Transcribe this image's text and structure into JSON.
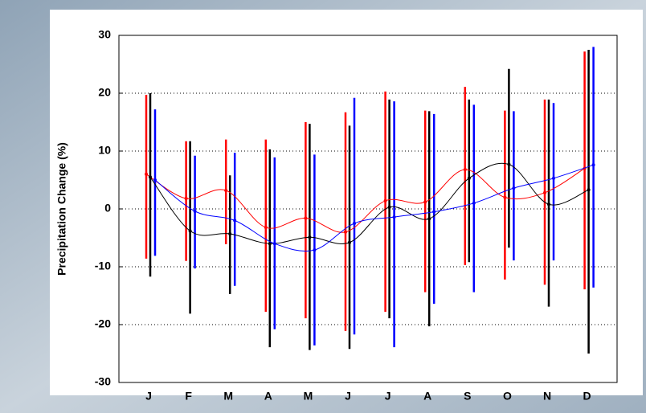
{
  "chart_data": {
    "type": "line-range",
    "y_label": "Precipitation Change (%)",
    "categories": [
      "J",
      "F",
      "M",
      "A",
      "M",
      "J",
      "J",
      "A",
      "S",
      "O",
      "N",
      "D"
    ],
    "ylim": [
      -30,
      30
    ],
    "yticks": [
      -30,
      -20,
      -10,
      0,
      10,
      20,
      30
    ],
    "grid": true,
    "series": [
      {
        "color": "#ff0000",
        "values": [
          6,
          1.8,
          3.2,
          -3.2,
          -1.6,
          -4,
          1.4,
          1.2,
          6.8,
          2,
          2.8,
          7
        ],
        "low": [
          -8.6,
          -9,
          -6.1,
          -17.8,
          -18.9,
          -21.1,
          -17.8,
          -14.4,
          -9.7,
          -12.2,
          -13.1,
          -13.9
        ],
        "high": [
          19.7,
          11.7,
          12,
          12,
          15,
          16.7,
          20.3,
          17,
          21.1,
          17,
          18.9,
          27.2
        ]
      },
      {
        "color": "#000000",
        "values": [
          5.5,
          -3.8,
          -4.3,
          -6,
          -4.9,
          -5.8,
          0.3,
          -1.7,
          5.3,
          7.7,
          0.8,
          3.3
        ],
        "low": [
          -11.7,
          -18.1,
          -14.7,
          -23.9,
          -24.4,
          -24.2,
          -18.9,
          -20.3,
          -9.2,
          -6.7,
          -16.9,
          -25
        ],
        "high": [
          20,
          11.7,
          5.8,
          10.3,
          14.7,
          14.4,
          18.9,
          16.9,
          18.9,
          24.2,
          18.9,
          27.5
        ]
      },
      {
        "color": "#0000ff",
        "values": [
          5,
          -0.4,
          -2,
          -6,
          -7.1,
          -2.5,
          -1.4,
          -0.5,
          1,
          3.6,
          5.3,
          7.6
        ],
        "low": [
          -8.1,
          -10.3,
          -13.3,
          -20.8,
          -23.6,
          -21.7,
          -23.9,
          -16.4,
          -14.4,
          -8.9,
          -8.9,
          -13.6
        ],
        "high": [
          17.2,
          9.2,
          9.7,
          8.9,
          9.4,
          19.2,
          18.6,
          16.4,
          18,
          16.9,
          18.3,
          28
        ]
      }
    ]
  }
}
